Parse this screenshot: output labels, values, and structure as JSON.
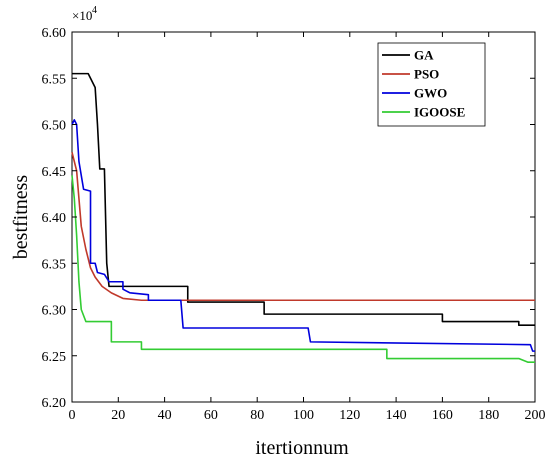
{
  "chart_data": {
    "type": "line",
    "xlabel": "itertionnum",
    "ylabel": "bestfitness",
    "y_multiplier_label": "×10",
    "y_multiplier_exp": "4",
    "xlim": [
      0,
      200
    ],
    "ylim": [
      6.2,
      6.6
    ],
    "xticks": [
      0,
      20,
      40,
      60,
      80,
      100,
      120,
      140,
      160,
      180,
      200
    ],
    "yticks": [
      6.2,
      6.25,
      6.3,
      6.35,
      6.4,
      6.45,
      6.5,
      6.55,
      6.6
    ],
    "ytick_labels": [
      "6.20",
      "6.25",
      "6.30",
      "6.35",
      "6.40",
      "6.45",
      "6.50",
      "6.55",
      "6.60"
    ],
    "grid": false,
    "legend_position": "top-right",
    "series": [
      {
        "name": "GA",
        "color": "#000000",
        "points": [
          [
            0,
            6.555
          ],
          [
            7,
            6.555
          ],
          [
            10,
            6.54
          ],
          [
            11,
            6.5
          ],
          [
            12,
            6.452
          ],
          [
            14,
            6.452
          ],
          [
            15,
            6.35
          ],
          [
            16,
            6.325
          ],
          [
            50,
            6.325
          ],
          [
            50,
            6.308
          ],
          [
            83,
            6.308
          ],
          [
            83,
            6.295
          ],
          [
            160,
            6.295
          ],
          [
            160,
            6.287
          ],
          [
            193,
            6.287
          ],
          [
            193,
            6.283
          ],
          [
            200,
            6.283
          ]
        ]
      },
      {
        "name": "PSO",
        "color": "#c0392b",
        "points": [
          [
            0,
            6.47
          ],
          [
            2,
            6.45
          ],
          [
            3,
            6.42
          ],
          [
            4,
            6.39
          ],
          [
            6,
            6.365
          ],
          [
            8,
            6.345
          ],
          [
            10,
            6.335
          ],
          [
            13,
            6.325
          ],
          [
            17,
            6.318
          ],
          [
            22,
            6.312
          ],
          [
            30,
            6.31
          ],
          [
            200,
            6.31
          ]
        ]
      },
      {
        "name": "GWO",
        "color": "#0000dd",
        "points": [
          [
            0,
            6.5
          ],
          [
            1,
            6.505
          ],
          [
            2,
            6.5
          ],
          [
            3,
            6.46
          ],
          [
            5,
            6.43
          ],
          [
            8,
            6.428
          ],
          [
            8,
            6.35
          ],
          [
            10,
            6.35
          ],
          [
            11,
            6.34
          ],
          [
            14,
            6.338
          ],
          [
            16,
            6.33
          ],
          [
            22,
            6.33
          ],
          [
            22,
            6.322
          ],
          [
            25,
            6.318
          ],
          [
            33,
            6.316
          ],
          [
            33,
            6.31
          ],
          [
            47,
            6.31
          ],
          [
            48,
            6.28
          ],
          [
            102,
            6.28
          ],
          [
            103,
            6.265
          ],
          [
            198,
            6.262
          ],
          [
            199,
            6.255
          ],
          [
            200,
            6.255
          ]
        ]
      },
      {
        "name": "IGOOSE",
        "color": "#33cc33",
        "points": [
          [
            0,
            6.445
          ],
          [
            1,
            6.42
          ],
          [
            2,
            6.38
          ],
          [
            3,
            6.33
          ],
          [
            4,
            6.3
          ],
          [
            6,
            6.287
          ],
          [
            17,
            6.287
          ],
          [
            17,
            6.265
          ],
          [
            30,
            6.265
          ],
          [
            30,
            6.257
          ],
          [
            136,
            6.257
          ],
          [
            136,
            6.247
          ],
          [
            193,
            6.247
          ],
          [
            195,
            6.245
          ],
          [
            197,
            6.243
          ],
          [
            200,
            6.243
          ]
        ]
      }
    ]
  }
}
